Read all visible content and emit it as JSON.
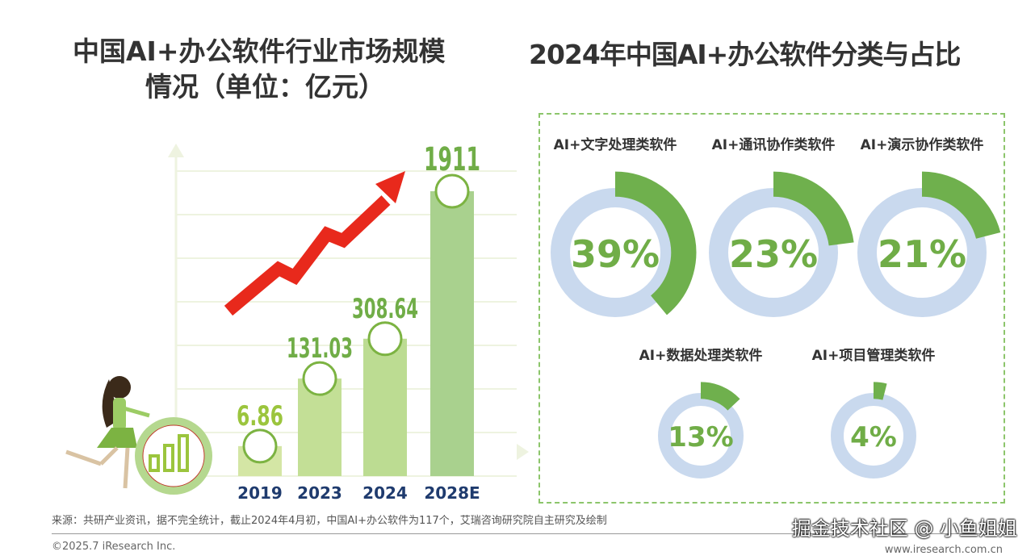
{
  "titles": {
    "left_line1": "中国AI+办公软件行业市场规模",
    "left_line2": "情况（单位：亿元）",
    "right": "2024年中国AI+办公软件分类与占比"
  },
  "colors": {
    "bar": "#a9d18e",
    "label": "#70ad47",
    "year": "#1f3b6e",
    "arrow": "#e8291c",
    "ring": "#c9d9ee",
    "arc": "#6fb04d"
  },
  "chart_data": [
    {
      "type": "bar",
      "title": "中国AI+办公软件行业市场规模情况（单位：亿元）",
      "categories": [
        "2019",
        "2023",
        "2024",
        "2028E"
      ],
      "values": [
        6.86,
        131.03,
        308.64,
        1911
      ],
      "value_labels": [
        "6.86",
        "131.03",
        "308.64",
        "1911"
      ],
      "grid": true,
      "note": ""
    },
    {
      "type": "pie",
      "title": "2024年中国AI+办公软件分类与占比",
      "slices": [
        {
          "label": "AI+文字处理类软件",
          "value": 39,
          "text": "39%"
        },
        {
          "label": "AI+通讯协作类软件",
          "value": 23,
          "text": "23%"
        },
        {
          "label": "AI+演示协作类软件",
          "value": 21,
          "text": "21%"
        },
        {
          "label": "AI+数据处理类软件",
          "value": 13,
          "text": "13%"
        },
        {
          "label": "AI+项目管理类软件",
          "value": 4,
          "text": "4%"
        }
      ]
    }
  ],
  "footer": {
    "source": "来源：共研产业资讯，据不完全统计，截止2024年4月初，中国AI+办公软件为117个，艾瑞咨询研究院自主研究及绘制",
    "copyright": "©2025.7 iResearch Inc.",
    "website": "www.iresearch.com.cn",
    "watermark": "掘金技术社区 @ 小鱼姐姐"
  }
}
